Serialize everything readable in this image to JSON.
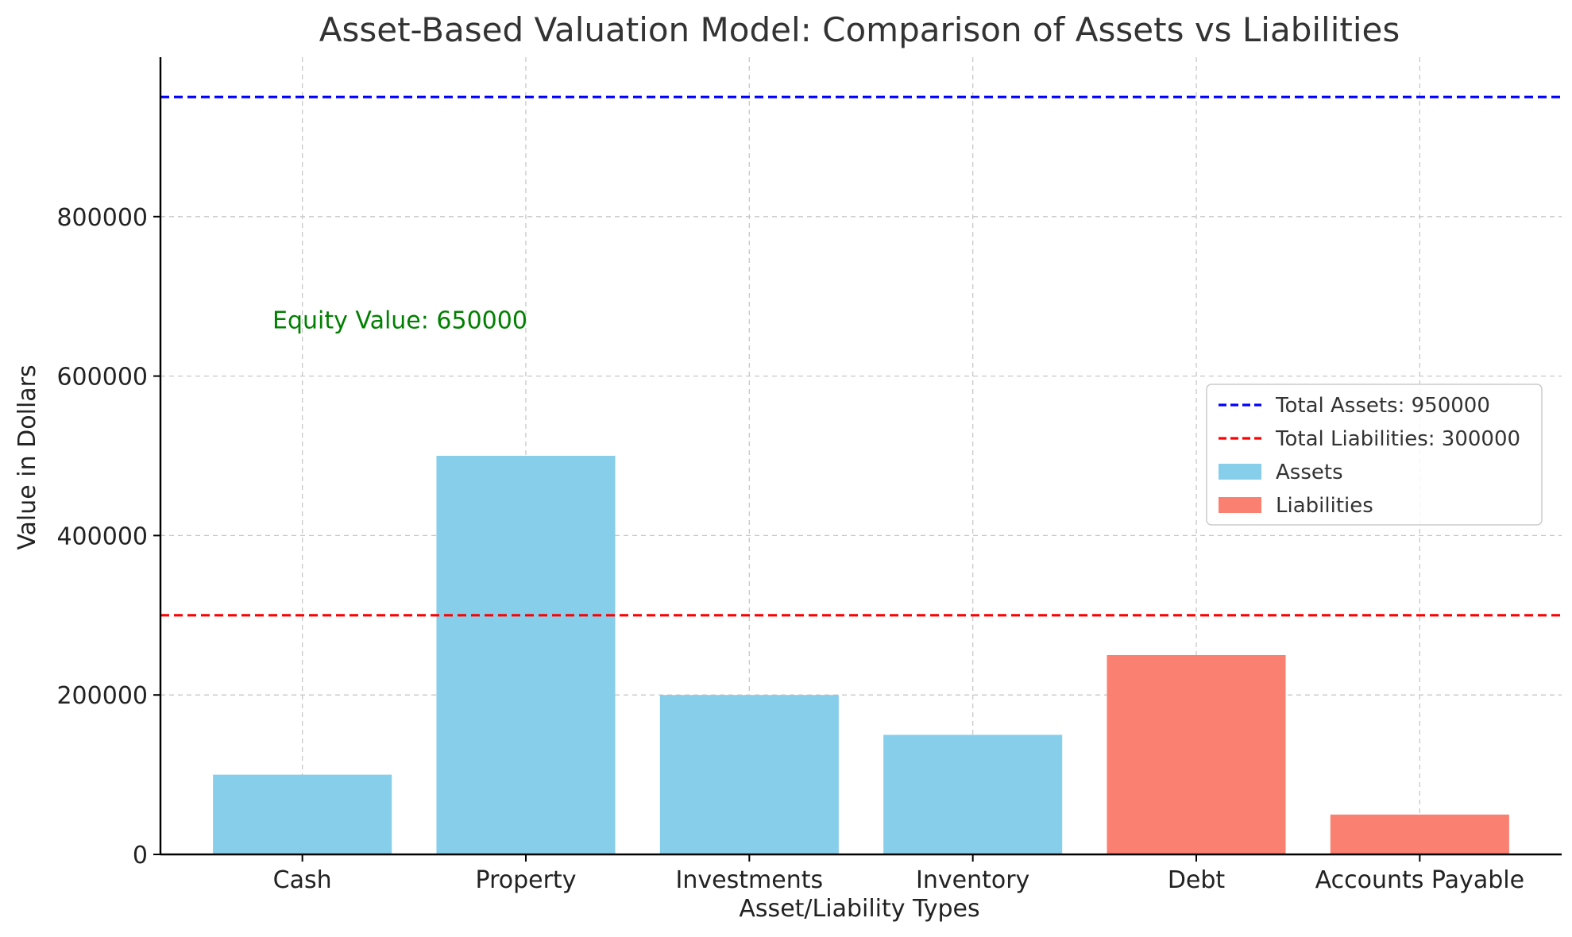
{
  "chart_data": {
    "type": "bar",
    "title": "Asset-Based Valuation Model: Comparison of Assets vs Liabilities",
    "xlabel": "Asset/Liability Types",
    "ylabel": "Value in Dollars",
    "categories": [
      "Cash",
      "Property",
      "Investments",
      "Inventory",
      "Debt",
      "Accounts Payable"
    ],
    "values": [
      100000,
      500000,
      200000,
      150000,
      250000,
      50000
    ],
    "bar_groups": [
      "Assets",
      "Assets",
      "Assets",
      "Assets",
      "Liabilities",
      "Liabilities"
    ],
    "series": [
      {
        "name": "Assets",
        "color": "#87CEEB"
      },
      {
        "name": "Liabilities",
        "color": "#FA8072"
      }
    ],
    "reference_lines": [
      {
        "label": "Total Assets: 950000",
        "value": 950000,
        "color": "#0000FF",
        "style": "dashed"
      },
      {
        "label": "Total Liabilities: 300000",
        "value": 300000,
        "color": "#FF0000",
        "style": "dashed"
      }
    ],
    "annotation": {
      "text": "Equity Value: 650000",
      "x_category": "Property",
      "y": 660000,
      "color": "#008000"
    },
    "ylim": [
      0,
      1000000
    ],
    "yticks": [
      0,
      200000,
      400000,
      600000,
      800000
    ],
    "ytick_labels": [
      "0",
      "200000",
      "400000",
      "600000",
      "800000"
    ],
    "grid": true,
    "legend_position": "center-right"
  }
}
